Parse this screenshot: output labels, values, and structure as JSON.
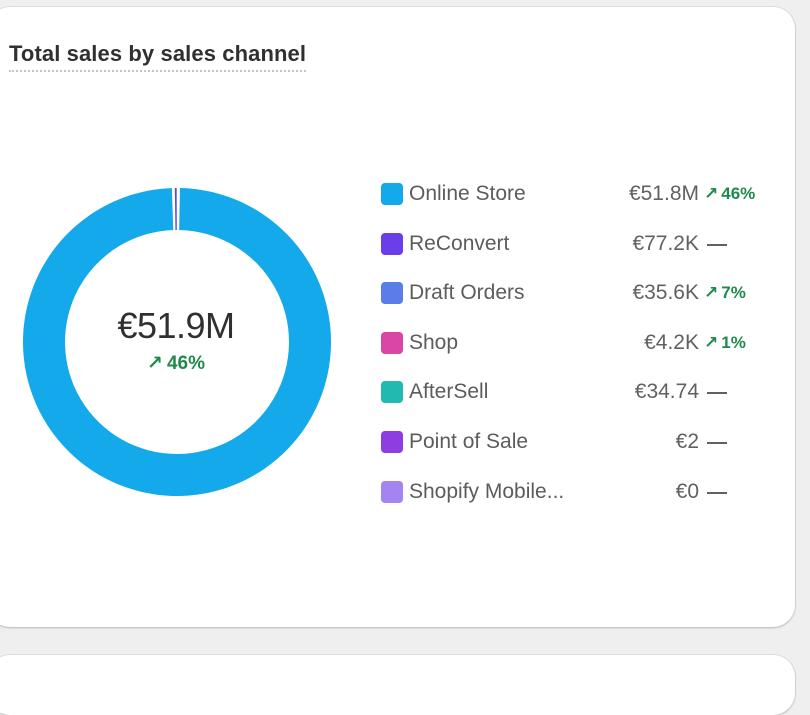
{
  "card": {
    "title": "Total sales by sales channel"
  },
  "colors": {
    "positive": "#1f8a4c",
    "neutral": "#616161"
  },
  "chart_data": {
    "type": "pie",
    "title": "Total sales by sales channel",
    "center_total": "€51.9M",
    "center_change": "46%",
    "center_change_direction": "up",
    "legend_position": "right",
    "series": [
      {
        "name": "Online Store",
        "label": "€51.8M",
        "value": 51800000,
        "change": "46%",
        "direction": "up",
        "color": "#13a9eb"
      },
      {
        "name": "ReConvert",
        "label": "€77.2K",
        "value": 77200,
        "change": "",
        "direction": "none",
        "color": "#6a3ee8"
      },
      {
        "name": "Draft Orders",
        "label": "€35.6K",
        "value": 35600,
        "change": "7%",
        "direction": "up",
        "color": "#5a7ee6"
      },
      {
        "name": "Shop",
        "label": "€4.2K",
        "value": 4200,
        "change": "1%",
        "direction": "up",
        "color": "#d946a6"
      },
      {
        "name": "AfterSell",
        "label": "€34.74",
        "value": 34.74,
        "change": "",
        "direction": "none",
        "color": "#22b9b0"
      },
      {
        "name": "Point of Sale",
        "label": "€2",
        "value": 2,
        "change": "",
        "direction": "none",
        "color": "#8e3ee0"
      },
      {
        "name": "Shopify Mobile...",
        "label": "€0",
        "value": 0,
        "change": "",
        "direction": "none",
        "color": "#a384f0"
      }
    ]
  }
}
